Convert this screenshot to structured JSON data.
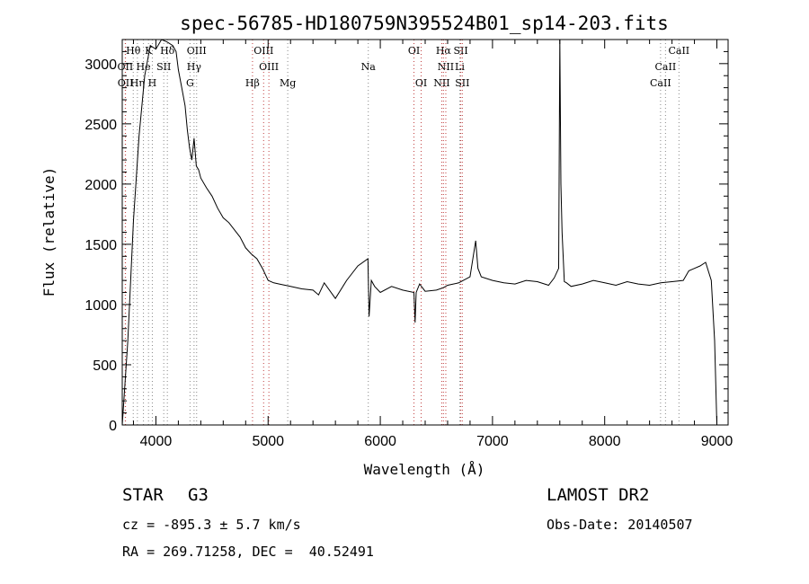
{
  "chart_data": {
    "type": "line",
    "title": "spec-56785-HD180759N395524B01_sp14-203.fits",
    "xlabel": "Wavelength (Å)",
    "ylabel": "Flux (relative)",
    "xlim": [
      3700,
      9100
    ],
    "ylim": [
      0,
      3200
    ],
    "xticks": [
      4000,
      5000,
      6000,
      7000,
      8000,
      9000
    ],
    "yticks": [
      0,
      500,
      1000,
      1500,
      2000,
      2500,
      3000
    ],
    "grid": false,
    "series": [
      {
        "color": "#000000",
        "x": [
          3700,
          3750,
          3800,
          3850,
          3900,
          3950,
          4000,
          4050,
          4100,
          4150,
          4180,
          4200,
          4230,
          4260,
          4280,
          4300,
          4320,
          4340,
          4360,
          4380,
          4400,
          4450,
          4500,
          4550,
          4600,
          4650,
          4700,
          4750,
          4800,
          4850,
          4900,
          4950,
          5000,
          5050,
          5100,
          5200,
          5300,
          5400,
          5450,
          5500,
          5600,
          5700,
          5800,
          5890,
          5900,
          5920,
          5950,
          6000,
          6100,
          6200,
          6300,
          6310,
          6320,
          6350,
          6400,
          6500,
          6563,
          6600,
          6700,
          6800,
          6850,
          6870,
          6900,
          7000,
          7100,
          7200,
          7300,
          7400,
          7500,
          7550,
          7590,
          7600,
          7610,
          7620,
          7640,
          7660,
          7700,
          7800,
          7900,
          8000,
          8100,
          8200,
          8300,
          8400,
          8500,
          8600,
          8700,
          8750,
          8800,
          8850,
          8900,
          8950,
          8980,
          9000
        ],
        "y": [
          0,
          700,
          1700,
          2400,
          2900,
          3150,
          3120,
          3200,
          3180,
          3150,
          3100,
          2950,
          2800,
          2650,
          2450,
          2300,
          2200,
          2380,
          2150,
          2120,
          2050,
          1970,
          1900,
          1800,
          1720,
          1680,
          1620,
          1560,
          1470,
          1420,
          1380,
          1300,
          1200,
          1180,
          1170,
          1150,
          1130,
          1120,
          1080,
          1180,
          1050,
          1200,
          1320,
          1380,
          900,
          1200,
          1150,
          1100,
          1150,
          1120,
          1100,
          850,
          1100,
          1170,
          1110,
          1120,
          1140,
          1160,
          1180,
          1230,
          1530,
          1300,
          1230,
          1200,
          1180,
          1170,
          1200,
          1190,
          1160,
          1220,
          1300,
          3200,
          2000,
          1600,
          1190,
          1180,
          1150,
          1170,
          1200,
          1180,
          1160,
          1190,
          1170,
          1160,
          1180,
          1190,
          1200,
          1280,
          1300,
          1320,
          1350,
          1200,
          700,
          0
        ]
      }
    ],
    "line_markers": [
      {
        "label": "Hθ",
        "x": 3798,
        "row": 0,
        "color": "#888888"
      },
      {
        "label": "K",
        "x": 3934,
        "row": 0,
        "color": "#888888"
      },
      {
        "label": "Hδ",
        "x": 4102,
        "row": 0,
        "color": "#888888"
      },
      {
        "label": "OIII",
        "x": 4363,
        "row": 0,
        "color": "#888888"
      },
      {
        "label": "OIII",
        "x": 4960,
        "row": 0,
        "color": "#c04040"
      },
      {
        "label": "OI",
        "x": 6300,
        "row": 0,
        "color": "#c04040"
      },
      {
        "label": "Hα",
        "x": 6563,
        "row": 0,
        "color": "#c04040"
      },
      {
        "label": "SII",
        "x": 6717,
        "row": 0,
        "color": "#c04040"
      },
      {
        "label": "CaII",
        "x": 8662,
        "row": 0,
        "color": "#888888"
      },
      {
        "label": "OII",
        "x": 3727,
        "row": 1,
        "color": "#c04040"
      },
      {
        "label": "He",
        "x": 3889,
        "row": 1,
        "color": "#888888"
      },
      {
        "label": "SII",
        "x": 4070,
        "row": 1,
        "color": "#888888"
      },
      {
        "label": "Hγ",
        "x": 4340,
        "row": 1,
        "color": "#888888"
      },
      {
        "label": "OIII",
        "x": 5007,
        "row": 1,
        "color": "#c04040"
      },
      {
        "label": "Na",
        "x": 5893,
        "row": 1,
        "color": "#888888"
      },
      {
        "label": "NII",
        "x": 6584,
        "row": 1,
        "color": "#c04040"
      },
      {
        "label": "Li",
        "x": 6708,
        "row": 1,
        "color": "#888888"
      },
      {
        "label": "CaII",
        "x": 8542,
        "row": 1,
        "color": "#888888"
      },
      {
        "label": "OII",
        "x": 3729,
        "row": 2,
        "color": "#c04040"
      },
      {
        "label": "Hη",
        "x": 3835,
        "row": 2,
        "color": "#888888"
      },
      {
        "label": "H",
        "x": 3968,
        "row": 2,
        "color": "#888888"
      },
      {
        "label": "G",
        "x": 4304,
        "row": 2,
        "color": "#888888"
      },
      {
        "label": "Hβ",
        "x": 4861,
        "row": 2,
        "color": "#c04040"
      },
      {
        "label": "Mg",
        "x": 5175,
        "row": 2,
        "color": "#888888"
      },
      {
        "label": "OI",
        "x": 6364,
        "row": 2,
        "color": "#c04040"
      },
      {
        "label": "NII",
        "x": 6548,
        "row": 2,
        "color": "#c04040"
      },
      {
        "label": "SII",
        "x": 6731,
        "row": 2,
        "color": "#c04040"
      },
      {
        "label": "CaII",
        "x": 8498,
        "row": 2,
        "color": "#888888"
      }
    ]
  },
  "info": {
    "object_class": "STAR",
    "subclass": "G3",
    "survey": "LAMOST DR2",
    "redshift": "cz = -895.3 ± 5.7 km/s",
    "obs_date": "Obs-Date: 20140507",
    "coords": "RA = 269.71258, DEC =  40.52491"
  }
}
